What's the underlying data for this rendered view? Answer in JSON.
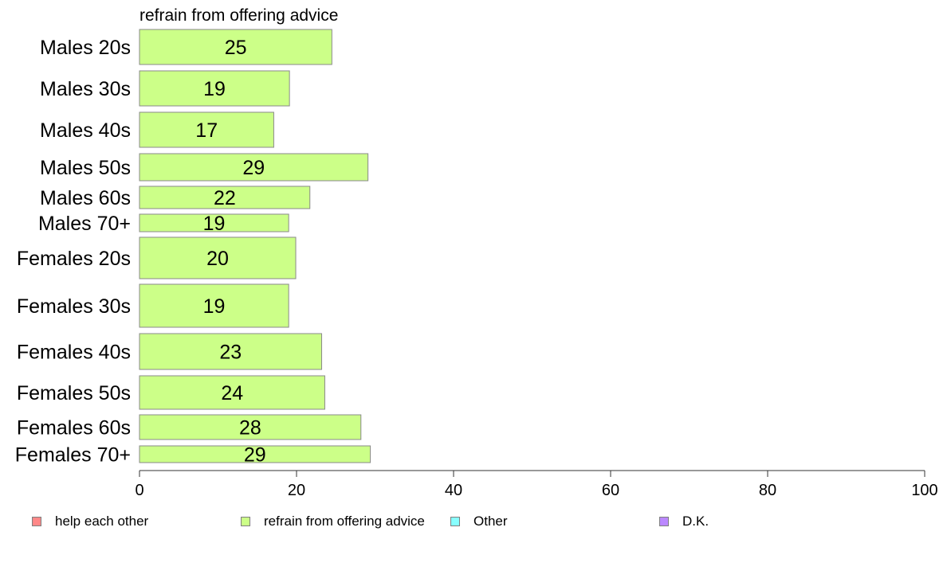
{
  "chart_data": {
    "type": "bar",
    "orientation": "horizontal",
    "title": "refrain from offering advice",
    "categories": [
      "Males 20s",
      "Males 30s",
      "Males 40s",
      "Males 50s",
      "Males 60s",
      "Males 70+",
      "Females 20s",
      "Females 30s",
      "Females 40s",
      "Females 50s",
      "Females 60s",
      "Females 70+"
    ],
    "values": [
      24.5,
      19.1,
      17.1,
      29.1,
      21.7,
      19.0,
      19.9,
      19.0,
      23.2,
      23.6,
      28.2,
      29.4
    ],
    "value_labels": [
      "25",
      "19",
      "17",
      "29",
      "22",
      "19",
      "20",
      "19",
      "23",
      "24",
      "28",
      "29"
    ],
    "bar_color": "#ccff88",
    "xlim": [
      0,
      100
    ],
    "xticks": [
      "0",
      "20",
      "40",
      "60",
      "80",
      "100"
    ],
    "grid": false,
    "legend_position": "bottom",
    "legend": [
      {
        "label": "help each other",
        "color": "#ff8888"
      },
      {
        "label": "refrain from offering advice",
        "color": "#ccff88"
      },
      {
        "label": "Other",
        "color": "#88ffff"
      },
      {
        "label": "D.K.",
        "color": "#bb88ff"
      }
    ]
  }
}
